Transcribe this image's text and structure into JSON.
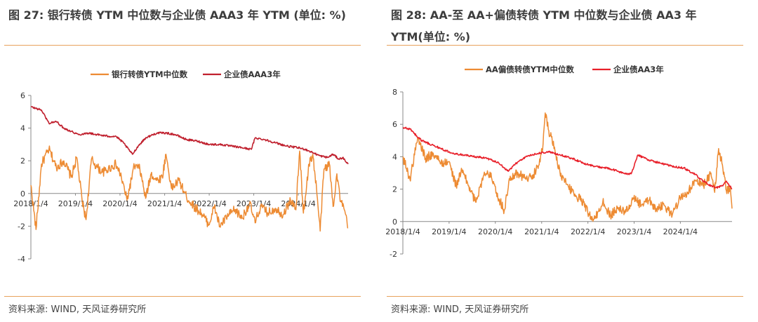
{
  "left": {
    "title": "图 27: 银行转债 YTM 中位数与企业债 AAA3 年 YTM (单位: %)",
    "source": "资料来源: WIND, 天风证券研究所"
  },
  "right": {
    "title": "图 28: AA-至 AA+偏债转债 YTM 中位数与企业债 AA3 年 YTM(单位: %)",
    "source": "资料来源: WIND, 天风证券研究所"
  },
  "chart_data": [
    {
      "type": "line",
      "title": "",
      "xlabel": "",
      "ylabel": "",
      "ylim": [
        -4,
        6
      ],
      "yticks": [
        -4,
        -2,
        0,
        2,
        4,
        6
      ],
      "xticks": [
        "2018/1/4",
        "2019/1/4",
        "2020/1/4",
        "2021/1/4",
        "2022/1/4",
        "2023/1/4",
        "2024/1/4"
      ],
      "x_start": "2018/1/4",
      "x_end": "2025/2/15",
      "legend": "top",
      "grid": false,
      "series": [
        {
          "name": "银行转债YTM中位数",
          "color": "#ed8b33",
          "x": [
            "2018/1/4",
            "2018/2/15",
            "2018/4/1",
            "2018/6/1",
            "2018/8/1",
            "2018/10/1",
            "2018/12/1",
            "2019/1/15",
            "2019/3/1",
            "2019/4/1",
            "2019/5/15",
            "2019/7/1",
            "2019/8/15",
            "2019/10/1",
            "2019/12/1",
            "2020/1/15",
            "2020/3/1",
            "2020/5/1",
            "2020/6/15",
            "2020/8/1",
            "2020/9/15",
            "2020/11/1",
            "2020/12/15",
            "2021/1/15",
            "2021/3/1",
            "2021/5/1",
            "2021/7/1",
            "2021/9/1",
            "2021/11/1",
            "2022/1/1",
            "2022/2/15",
            "2022/4/1",
            "2022/6/1",
            "2022/8/1",
            "2022/10/1",
            "2022/12/1",
            "2023/1/15",
            "2023/3/1",
            "2023/5/1",
            "2023/7/1",
            "2023/9/1",
            "2023/11/1",
            "2023/12/15",
            "2024/1/15",
            "2024/2/15",
            "2024/4/1",
            "2024/5/1",
            "2024/6/1",
            "2024/7/1",
            "2024/8/1",
            "2024/9/15",
            "2024/10/15",
            "2024/11/15",
            "2024/12/15",
            "2025/1/15",
            "2025/2/15"
          ],
          "y": [
            0.5,
            -2.2,
            1.8,
            2.7,
            1.6,
            2.0,
            1.0,
            2.2,
            -0.5,
            -1.6,
            2.1,
            1.6,
            1.3,
            1.5,
            1.8,
            1.0,
            -0.4,
            1.7,
            1.5,
            -0.3,
            1.2,
            0.8,
            1.0,
            2.4,
            0.3,
            0.8,
            -0.2,
            -0.8,
            -1.2,
            -1.9,
            -0.8,
            -2.0,
            -1.4,
            -1.0,
            -1.5,
            -0.6,
            -1.8,
            -0.8,
            -1.2,
            -0.9,
            -1.3,
            -0.4,
            -1.0,
            2.6,
            -1.2,
            1.8,
            2.4,
            0.3,
            -2.3,
            1.5,
            1.8,
            -0.8,
            1.2,
            -0.5,
            -1.0,
            -2.1
          ]
        },
        {
          "name": "企业债AAA3年",
          "color": "#c0202e",
          "x": [
            "2018/1/4",
            "2018/4/1",
            "2018/6/1",
            "2018/8/1",
            "2018/10/1",
            "2018/12/1",
            "2019/2/1",
            "2019/4/15",
            "2019/7/1",
            "2019/10/1",
            "2019/12/1",
            "2020/2/1",
            "2020/4/15",
            "2020/6/1",
            "2020/8/1",
            "2020/11/1",
            "2021/1/15",
            "2021/4/1",
            "2021/7/1",
            "2021/10/1",
            "2022/1/1",
            "2022/4/1",
            "2022/7/1",
            "2022/10/1",
            "2022/12/15",
            "2023/1/15",
            "2023/4/1",
            "2023/7/1",
            "2023/10/1",
            "2024/1/1",
            "2024/3/1",
            "2024/5/1",
            "2024/7/1",
            "2024/9/1",
            "2024/10/15",
            "2024/12/1",
            "2025/1/1",
            "2025/2/15"
          ],
          "y": [
            5.3,
            5.1,
            4.3,
            4.4,
            4.0,
            3.8,
            3.6,
            3.7,
            3.6,
            3.5,
            3.5,
            3.1,
            2.4,
            2.9,
            3.4,
            3.7,
            3.7,
            3.6,
            3.3,
            3.2,
            3.0,
            3.0,
            2.9,
            2.8,
            2.7,
            3.4,
            3.3,
            3.1,
            2.9,
            2.8,
            2.7,
            2.5,
            2.3,
            2.2,
            2.4,
            2.1,
            2.2,
            1.8
          ]
        }
      ]
    },
    {
      "type": "line",
      "title": "",
      "xlabel": "",
      "ylabel": "",
      "ylim": [
        -2,
        8
      ],
      "yticks": [
        -2,
        0,
        2,
        4,
        6,
        8
      ],
      "xticks": [
        "2018/1/4",
        "2019/1/4",
        "2020/1/4",
        "2021/1/4",
        "2022/1/4",
        "2023/1/4",
        "2024/1/4"
      ],
      "x_start": "2018/1/4",
      "x_end": "2025/2/15",
      "legend": "top",
      "grid": false,
      "series": [
        {
          "name": "AA偏债转债YTM中位数",
          "color": "#ed8b33",
          "x": [
            "2018/1/4",
            "2018/3/1",
            "2018/5/1",
            "2018/7/1",
            "2018/9/1",
            "2018/11/1",
            "2019/1/1",
            "2019/3/1",
            "2019/4/15",
            "2019/6/1",
            "2019/8/1",
            "2019/10/1",
            "2019/12/1",
            "2020/2/1",
            "2020/3/15",
            "2020/5/1",
            "2020/7/1",
            "2020/9/1",
            "2020/11/1",
            "2020/12/15",
            "2021/1/15",
            "2021/2/1",
            "2021/3/1",
            "2021/4/15",
            "2021/6/1",
            "2021/8/1",
            "2021/10/1",
            "2021/12/1",
            "2022/1/15",
            "2022/3/1",
            "2022/5/1",
            "2022/7/1",
            "2022/9/1",
            "2022/11/1",
            "2023/1/1",
            "2023/3/1",
            "2023/5/1",
            "2023/7/1",
            "2023/9/1",
            "2023/11/1",
            "2024/1/1",
            "2024/3/1",
            "2024/5/1",
            "2024/7/1",
            "2024/9/1",
            "2024/10/1",
            "2024/11/1",
            "2024/12/1",
            "2025/1/1",
            "2025/2/1",
            "2025/2/15"
          ],
          "y": [
            4.0,
            2.6,
            5.2,
            3.9,
            4.2,
            3.6,
            3.7,
            2.2,
            3.2,
            2.3,
            1.2,
            2.8,
            3.0,
            1.4,
            0.7,
            2.8,
            3.0,
            2.6,
            2.9,
            3.5,
            4.8,
            6.7,
            5.6,
            4.6,
            2.8,
            2.2,
            1.6,
            1.2,
            0.4,
            0.2,
            1.2,
            0.4,
            0.8,
            0.6,
            1.4,
            1.0,
            1.3,
            0.8,
            1.0,
            0.4,
            1.5,
            1.8,
            2.5,
            2.2,
            3.0,
            1.8,
            4.5,
            3.5,
            1.9,
            2.1,
            0.8
          ]
        },
        {
          "name": "企业债AA3年",
          "color": "#e8202a",
          "x": [
            "2018/1/4",
            "2018/3/1",
            "2018/6/1",
            "2018/8/1",
            "2018/11/1",
            "2019/2/1",
            "2019/5/1",
            "2019/8/1",
            "2019/11/1",
            "2020/2/1",
            "2020/4/15",
            "2020/6/1",
            "2020/9/1",
            "2020/12/1",
            "2021/3/1",
            "2021/6/1",
            "2021/9/1",
            "2021/12/1",
            "2022/3/1",
            "2022/6/1",
            "2022/9/1",
            "2022/11/15",
            "2022/12/15",
            "2023/2/1",
            "2023/5/1",
            "2023/8/1",
            "2023/11/1",
            "2024/2/1",
            "2024/5/1",
            "2024/7/1",
            "2024/9/1",
            "2024/10/15",
            "2024/12/1",
            "2025/1/1",
            "2025/2/15"
          ],
          "y": [
            5.8,
            5.7,
            5.0,
            4.8,
            4.5,
            4.2,
            4.1,
            4.0,
            3.9,
            3.6,
            3.1,
            3.5,
            4.0,
            4.2,
            4.3,
            4.1,
            3.9,
            3.6,
            3.4,
            3.3,
            3.1,
            2.9,
            3.0,
            4.1,
            3.8,
            3.6,
            3.4,
            3.3,
            2.9,
            2.5,
            2.2,
            2.1,
            2.2,
            2.5,
            2.0
          ]
        }
      ]
    }
  ]
}
